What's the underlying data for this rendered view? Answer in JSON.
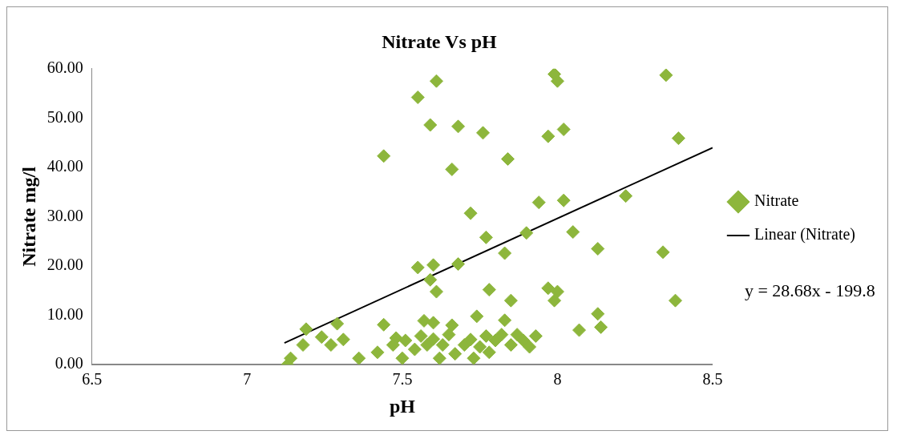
{
  "chart_data": {
    "type": "scatter",
    "title": "Nitrate Vs pH",
    "xlabel": "pH",
    "ylabel": "Nitrate mg/l",
    "xlim": [
      6.5,
      8.5
    ],
    "xticks": [
      6.5,
      7,
      7.5,
      8,
      8.5
    ],
    "ylim": [
      0,
      60
    ],
    "yticks": [
      {
        "value": 0,
        "label": "0.00"
      },
      {
        "value": 10,
        "label": "10.00"
      },
      {
        "value": 20,
        "label": "20.00"
      },
      {
        "value": 30,
        "label": "30.00"
      },
      {
        "value": 40,
        "label": "40.00"
      },
      {
        "value": 50,
        "label": "50.00"
      },
      {
        "value": 60,
        "label": "60.00"
      }
    ],
    "grid": false,
    "legend": "right",
    "annotations": [
      "y = 28.68x - 199.8"
    ],
    "series": [
      {
        "name": "Nitrate",
        "type": "scatter",
        "marker": "diamond",
        "color": "#8db63c",
        "x": [
          7.44,
          7.55,
          7.61,
          7.66,
          7.59,
          7.68,
          7.76,
          7.84,
          7.99,
          8.0,
          7.97,
          8.02,
          8.35,
          8.39,
          7.72,
          7.77,
          7.9,
          7.94,
          8.02,
          8.22,
          8.05,
          8.13,
          8.34,
          8.38,
          7.55,
          7.6,
          7.68,
          7.59,
          7.61,
          7.83,
          7.78,
          7.85,
          7.97,
          8.0,
          7.99,
          7.74,
          7.57,
          7.66,
          7.44,
          7.48,
          8.13,
          8.14,
          8.07,
          7.83,
          7.13,
          7.14,
          7.18,
          7.19,
          7.24,
          7.27,
          7.29,
          7.31,
          7.36,
          7.42,
          7.47,
          7.5,
          7.51,
          7.54,
          7.56,
          7.58,
          7.6,
          7.62,
          7.63,
          7.65,
          7.67,
          7.7,
          7.72,
          7.73,
          7.75,
          7.77,
          7.78,
          7.8,
          7.82,
          7.85,
          7.87,
          7.89,
          7.91,
          7.93,
          7.6
        ],
        "values": [
          42.3,
          54.2,
          57.5,
          39.6,
          48.6,
          48.3,
          47.0,
          41.7,
          58.9,
          57.5,
          46.3,
          47.7,
          58.7,
          45.9,
          30.7,
          25.8,
          26.7,
          32.9,
          33.3,
          34.2,
          26.9,
          23.5,
          22.8,
          13.0,
          19.7,
          20.2,
          20.4,
          17.2,
          14.8,
          22.6,
          15.2,
          13.0,
          15.5,
          14.8,
          13.0,
          9.8,
          8.9,
          8.0,
          8.1,
          5.4,
          10.3,
          7.6,
          7.0,
          9.0,
          0.0,
          1.3,
          4.0,
          7.2,
          5.6,
          4.0,
          8.3,
          5.1,
          1.3,
          2.5,
          4.0,
          1.3,
          4.9,
          3.1,
          5.8,
          4.0,
          5.2,
          1.3,
          4.0,
          6.1,
          2.2,
          4.0,
          5.1,
          1.3,
          3.6,
          5.8,
          2.5,
          4.9,
          6.1,
          4.0,
          6.1,
          4.9,
          3.6,
          5.8,
          8.5
        ]
      },
      {
        "name": "Linear (Nitrate)",
        "type": "line",
        "marker": "none",
        "line_style": "solid",
        "color": "#000000",
        "x": [
          7.12,
          8.5
        ],
        "values": [
          4.4,
          44.0
        ]
      }
    ]
  }
}
